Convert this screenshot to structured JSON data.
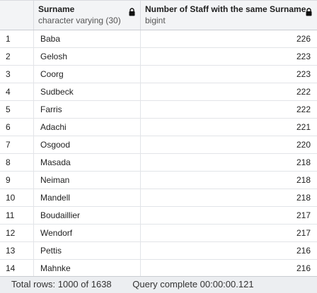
{
  "columns": [
    {
      "name": "Surname",
      "type": "character varying (30)"
    },
    {
      "name": "Number of Staff with the same Surname",
      "type": "bigint"
    }
  ],
  "rows": [
    {
      "index": "1",
      "surname": "Baba",
      "count": "226"
    },
    {
      "index": "2",
      "surname": "Gelosh",
      "count": "223"
    },
    {
      "index": "3",
      "surname": "Coorg",
      "count": "223"
    },
    {
      "index": "4",
      "surname": "Sudbeck",
      "count": "222"
    },
    {
      "index": "5",
      "surname": "Farris",
      "count": "222"
    },
    {
      "index": "6",
      "surname": "Adachi",
      "count": "221"
    },
    {
      "index": "7",
      "surname": "Osgood",
      "count": "220"
    },
    {
      "index": "8",
      "surname": "Masada",
      "count": "218"
    },
    {
      "index": "9",
      "surname": "Neiman",
      "count": "218"
    },
    {
      "index": "10",
      "surname": "Mandell",
      "count": "218"
    },
    {
      "index": "11",
      "surname": "Boudaillier",
      "count": "217"
    },
    {
      "index": "12",
      "surname": "Wendorf",
      "count": "217"
    },
    {
      "index": "13",
      "surname": "Pettis",
      "count": "216"
    },
    {
      "index": "14",
      "surname": "Mahnke",
      "count": "216"
    }
  ],
  "status": {
    "total_rows": "Total rows: 1000 of 1638",
    "query": "Query complete 00:00:00.121"
  },
  "icons": {
    "column_lock": "lock-icon"
  }
}
